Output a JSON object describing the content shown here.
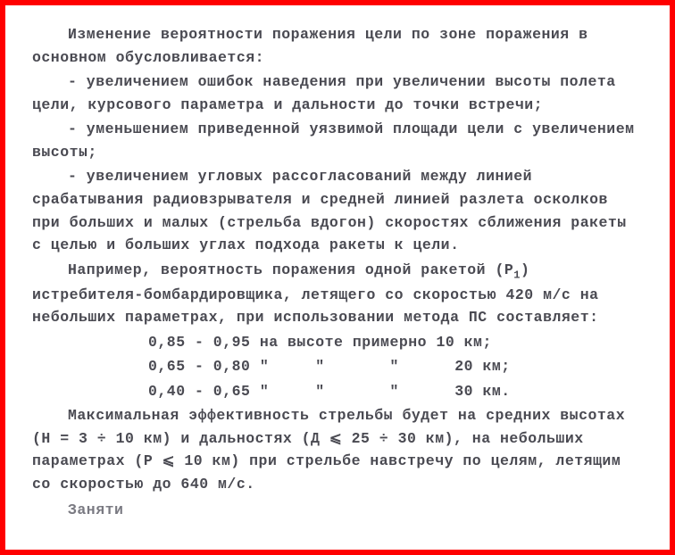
{
  "text_color": "#4a4a52",
  "border_color": "#ff0000",
  "background_color": "#ffffff",
  "font_family": "Courier New",
  "font_size_pt": 12,
  "font_weight": "bold",
  "paragraphs": {
    "p1": "Изменение вероятности поражения цели по зоне поражения в основном обусловливается:",
    "b1": "- увеличением ошибок наведения при увеличении высоты полета цели, курсового параметра и дальности до точки встречи;",
    "b2": "- уменьшением приведенной уязвимой площади цели с увеличением высоты;",
    "b3": "- увеличением угловых рассогласований между линией срабатывания радиовзрывателя и средней линией разлета осколков при больших и малых (стрельба вдогон) скоростях сближения ракеты с целью и больших углах подхода ракеты к цели.",
    "p2_a": "Например, вероятность поражения одной ракетой (Р",
    "p2_sub": "1",
    "p2_b": ") истребителя-бомбардировщика, летящего со скоростью 420 м/с на небольших параметрах, при использовании метода ПС составляет:",
    "row1": "0,85 - 0,95 на высоте примерно 10 км;",
    "row2": "0,65 - 0,80 \"     \"       \"      20 км;",
    "row3": "0,40 - 0,65 \"     \"       \"      30 км.",
    "p3": "Максимальная эффективность стрельбы будет на средних высотах (Н = 3 ÷ 10 км) и дальностях (Д ⩽ 25 ÷ 30 км), на небольших параметрах (Р ⩽ 10 км) при стрельбе навстречу по целям, летящим со скоростью до 640 м/с.",
    "partial": "Заняти "
  },
  "data_values": {
    "rows": [
      {
        "low": 0.85,
        "high": 0.95,
        "altitude_km": 10
      },
      {
        "low": 0.65,
        "high": 0.8,
        "altitude_km": 20
      },
      {
        "low": 0.4,
        "high": 0.65,
        "altitude_km": 30
      }
    ],
    "speed_ms": 420,
    "max_speed_ms": 640,
    "altitude_range_km": [
      3,
      10
    ],
    "range_km": [
      25,
      30
    ],
    "param_max_km": 10
  }
}
